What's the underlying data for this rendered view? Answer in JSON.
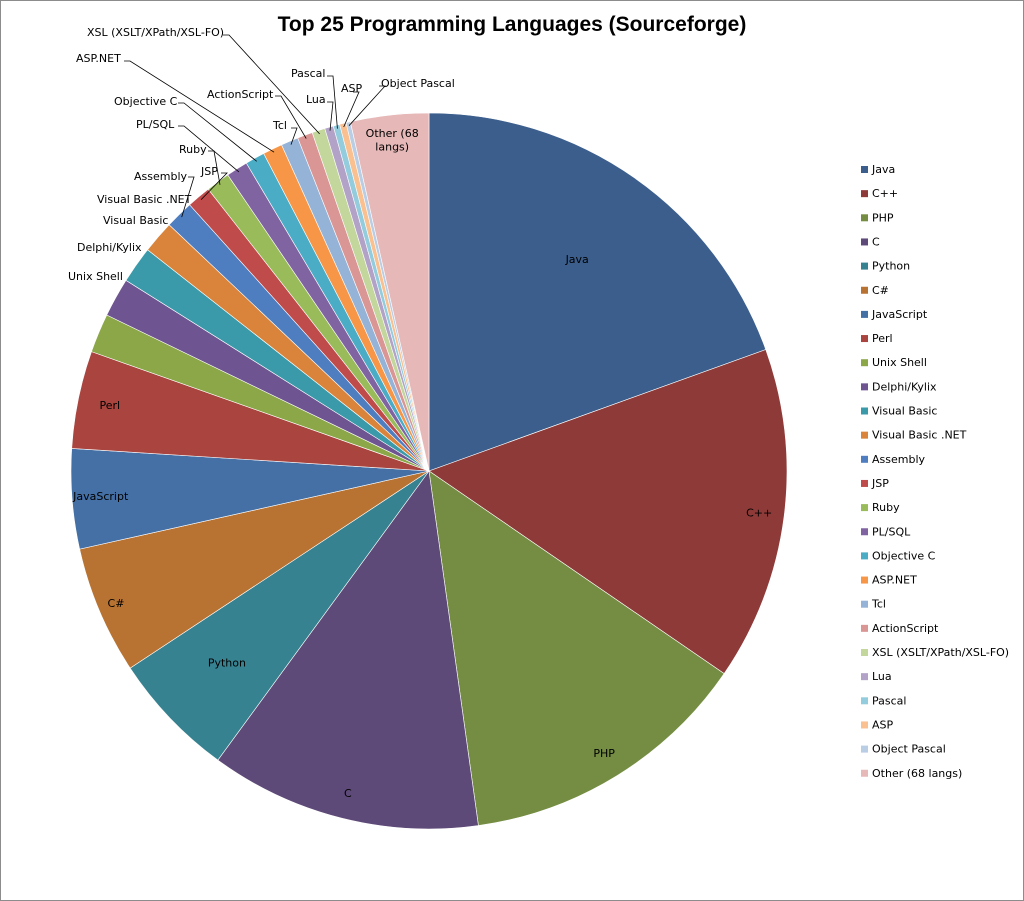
{
  "chart_data": {
    "type": "pie",
    "title": "Top 25 Programming Languages (Sourceforge)",
    "legend_position": "right",
    "start_angle_deg": 0,
    "direction": "clockwise",
    "slices": [
      {
        "label": "Java",
        "value": 19.9,
        "color": "#3B5E8C"
      },
      {
        "label": "C++",
        "value": 15.4,
        "color": "#8E3A38"
      },
      {
        "label": "PHP",
        "value": 13.5,
        "color": "#748D42"
      },
      {
        "label": "C",
        "value": 12.5,
        "color": "#5E4A78"
      },
      {
        "label": "Python",
        "value": 5.8,
        "color": "#378290"
      },
      {
        "label": "C#",
        "value": 5.9,
        "color": "#B87332"
      },
      {
        "label": "JavaScript",
        "value": 4.6,
        "color": "#4470A6"
      },
      {
        "label": "Perl",
        "value": 4.5,
        "color": "#A9443F"
      },
      {
        "label": "Unix Shell",
        "value": 1.8,
        "color": "#8BA748"
      },
      {
        "label": "Delphi/Kylix",
        "value": 1.8,
        "color": "#6E5490"
      },
      {
        "label": "Visual Basic",
        "value": 1.7,
        "color": "#3A9AAA"
      },
      {
        "label": "Visual Basic  .NET",
        "value": 1.5,
        "color": "#D9843A"
      },
      {
        "label": "Assembly",
        "value": 1.3,
        "color": "#4F7EC0"
      },
      {
        "label": "JSP",
        "value": 1.1,
        "color": "#C04B4B"
      },
      {
        "label": "Ruby",
        "value": 1.1,
        "color": "#9ABB59"
      },
      {
        "label": "PL/SQL",
        "value": 1.0,
        "color": "#8064A2"
      },
      {
        "label": "Objective C",
        "value": 0.9,
        "color": "#4BACC6"
      },
      {
        "label": "ASP.NET",
        "value": 0.9,
        "color": "#F79646"
      },
      {
        "label": "Tcl",
        "value": 0.8,
        "color": "#95B3D7"
      },
      {
        "label": "ActionScript",
        "value": 0.7,
        "color": "#D99694"
      },
      {
        "label": "XSL (XSLT/XPath/XSL-FO)",
        "value": 0.6,
        "color": "#C3D69B"
      },
      {
        "label": "Lua",
        "value": 0.4,
        "color": "#B2A2C7"
      },
      {
        "label": "Pascal",
        "value": 0.3,
        "color": "#93CDDD"
      },
      {
        "label": "ASP",
        "value": 0.3,
        "color": "#FAC090"
      },
      {
        "label": "Object Pascal",
        "value": 0.2,
        "color": "#B9CDE5"
      },
      {
        "label": "Other (68 langs)",
        "value": 3.6,
        "color": "#E6B9B8"
      }
    ],
    "inside_labels": {
      "Java": "Java",
      "C++": "C++",
      "PHP": "PHP",
      "C": "C",
      "Python": "Python",
      "C#": "C#",
      "JavaScript": "JavaScript",
      "Perl": "Perl",
      "Other (68 langs)": [
        "Other (68",
        "langs)"
      ]
    }
  }
}
